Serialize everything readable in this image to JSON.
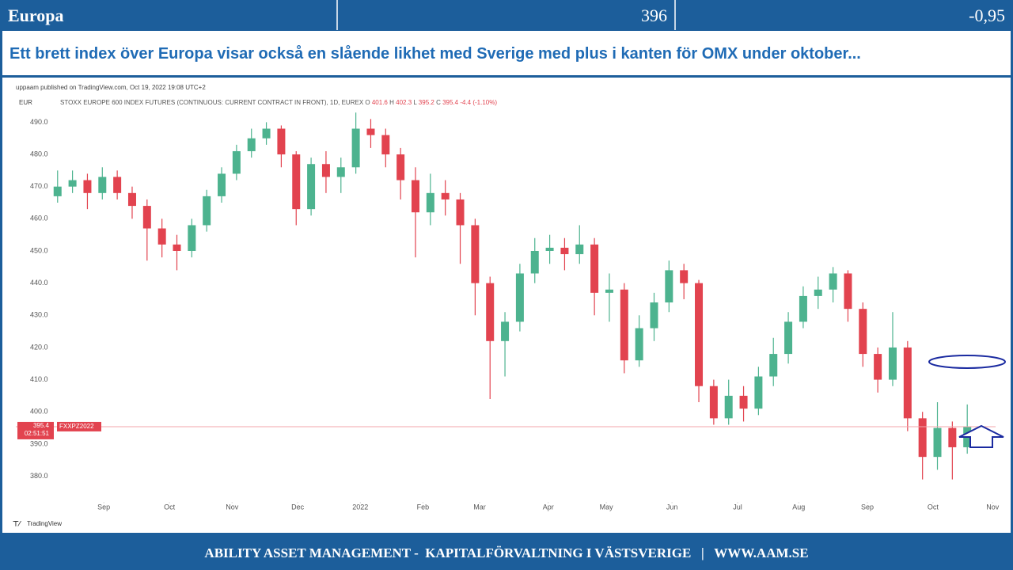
{
  "header": {
    "title": "Europa",
    "value": 396,
    "change": "-0,95"
  },
  "subtitle": "Ett brett index över Europa visar också en slående likhet med Sverige med plus i kanten för OMX under oktober...",
  "footer": "ABILITY ASSET MANAGEMENT -  KAPITALFÖRVALTNING I VÄSTSVERIGE   |   WWW.AAM.SE",
  "chart_data": {
    "type": "candlestick",
    "attribution": "uppaam published on TradingView.com, Oct 19, 2022 19:08 UTC+2",
    "currency": "EUR",
    "instrument": "STOXX EUROPE 600 INDEX FUTURES (CONTINUOUS: CURRENT CONTRACT IN FRONT), 1D, EUREX",
    "legend_ohlc": {
      "open_label": "O",
      "open": 401.6,
      "high_label": "H",
      "high": 402.3,
      "low_label": "L",
      "low": 395.2,
      "close_label": "C",
      "close": 395.4,
      "change": "-4.4 (-1.10%)"
    },
    "last_price": 395.4,
    "countdown": "02:51:51",
    "contract": "FXXPZ2022",
    "logo": "TradingView",
    "up_color": "#4db38f",
    "down_color": "#e2434f",
    "price_line_color": "#f3a5ab",
    "xlim": [
      -2.8,
      62.9
    ],
    "xticks": [
      {
        "value": 3.1,
        "label": "Sep"
      },
      {
        "value": 7.5,
        "label": "Oct"
      },
      {
        "value": 11.7,
        "label": "Nov"
      },
      {
        "value": 16.1,
        "label": "Dec"
      },
      {
        "value": 20.3,
        "label": "2022"
      },
      {
        "value": 24.5,
        "label": "Feb"
      },
      {
        "value": 28.3,
        "label": "Mar"
      },
      {
        "value": 32.9,
        "label": "Apr"
      },
      {
        "value": 36.8,
        "label": "May"
      },
      {
        "value": 41.2,
        "label": "Jun"
      },
      {
        "value": 45.6,
        "label": "Jul"
      },
      {
        "value": 49.7,
        "label": "Aug"
      },
      {
        "value": 54.3,
        "label": "Sep"
      },
      {
        "value": 58.7,
        "label": "Oct"
      },
      {
        "value": 62.7,
        "label": "Nov"
      }
    ],
    "ylim": [
      373,
      496
    ],
    "yticks": [
      {
        "value": 380,
        "label": "380.0"
      },
      {
        "value": 390,
        "label": "390.0"
      },
      {
        "value": 400,
        "label": "400.0"
      },
      {
        "value": 410,
        "label": "410.0"
      },
      {
        "value": 420,
        "label": "420.0"
      },
      {
        "value": 430,
        "label": "430.0"
      },
      {
        "value": 440,
        "label": "440.0"
      },
      {
        "value": 450,
        "label": "450.0"
      },
      {
        "value": 460,
        "label": "460.0"
      },
      {
        "value": 470,
        "label": "470.0"
      },
      {
        "value": 480,
        "label": "480.0"
      },
      {
        "value": 490,
        "label": "490.0"
      }
    ],
    "open": [
      467,
      470,
      472,
      468,
      473,
      468,
      464,
      457,
      452,
      450,
      458,
      467,
      474,
      481,
      485,
      488,
      480,
      463,
      477,
      473,
      476,
      488,
      486,
      480,
      472,
      462,
      468,
      466,
      458,
      440,
      422,
      428,
      443,
      450,
      451,
      449,
      452,
      437,
      438,
      416,
      426,
      434,
      444,
      440,
      408,
      398,
      405,
      401,
      411,
      418,
      428,
      436,
      438,
      443,
      432,
      418,
      410,
      420,
      398,
      386,
      395,
      389
    ],
    "high": [
      475,
      475,
      474,
      476,
      475,
      470,
      466,
      460,
      455,
      460,
      469,
      476,
      483,
      488,
      490,
      489,
      481,
      479,
      481,
      479,
      493,
      491,
      488,
      482,
      476,
      474,
      472,
      468,
      460,
      442,
      431,
      446,
      454,
      455,
      454,
      458,
      454,
      443,
      440,
      430,
      437,
      447,
      446,
      441,
      410,
      410,
      408,
      414,
      423,
      431,
      439,
      442,
      445,
      444,
      434,
      420,
      431,
      422,
      400,
      403,
      397,
      402.3
    ],
    "low": [
      465,
      468,
      463,
      466,
      466,
      460,
      447,
      448,
      444,
      448,
      456,
      465,
      472,
      479,
      483,
      476,
      458,
      461,
      468,
      468,
      474,
      482,
      476,
      466,
      448,
      458,
      461,
      446,
      430,
      404,
      411,
      425,
      440,
      446,
      444,
      446,
      430,
      428,
      412,
      414,
      422,
      431,
      435,
      403,
      396,
      396,
      397,
      399,
      408,
      415,
      426,
      432,
      434,
      428,
      414,
      406,
      408,
      394,
      379,
      382,
      379,
      387
    ],
    "close": [
      470,
      472,
      468,
      473,
      468,
      464,
      457,
      452,
      450,
      458,
      467,
      474,
      481,
      485,
      488,
      480,
      463,
      477,
      473,
      476,
      488,
      486,
      480,
      472,
      462,
      468,
      466,
      458,
      440,
      422,
      428,
      443,
      450,
      451,
      449,
      452,
      437,
      438,
      416,
      426,
      434,
      444,
      440,
      408,
      398,
      405,
      401,
      411,
      418,
      428,
      436,
      438,
      443,
      432,
      418,
      410,
      420,
      398,
      386,
      395,
      389,
      395.4
    ]
  }
}
